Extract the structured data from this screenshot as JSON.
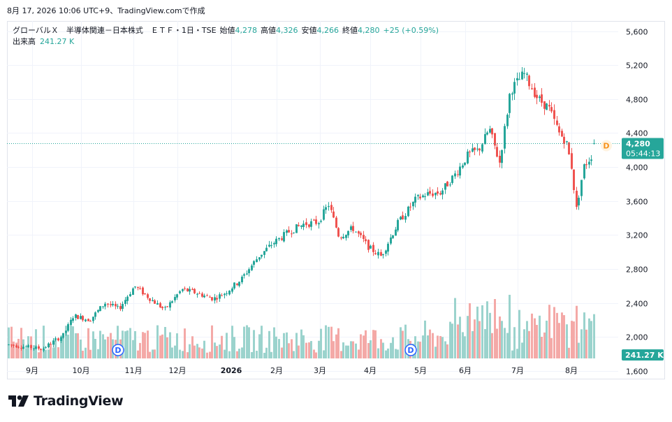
{
  "header": {
    "timestamp": "8月 17, 2026 10:06 UTC+9、TradingView.comで作成"
  },
  "legend": {
    "symbol": "グローバルＸ　半導体関連－日本株式　ＥＴＦ・1日・TSE",
    "open_label": "始値",
    "open_value": "4,278",
    "high_label": "高値",
    "high_value": "4,326",
    "low_label": "安値",
    "low_value": "4,266",
    "close_label": "終値",
    "close_value": "4,280",
    "change": "+25 (+0.59%)",
    "volume_label": "出来高",
    "volume_value": "241.27 K"
  },
  "price_axis": {
    "ticks": [
      "5,600",
      "5,200",
      "4,800",
      "4,400",
      "4,000",
      "3,600",
      "3,200",
      "2,800",
      "2,400",
      "2,000",
      "1,600"
    ],
    "last_price_label": "4,280",
    "countdown_label": "05:44:13",
    "volume_label": "241.27 K"
  },
  "time_axis": {
    "labels": [
      "9月",
      "10月",
      "11月",
      "12月",
      "2026",
      "2月",
      "3月",
      "4月",
      "5月",
      "6月",
      "7月",
      "8月"
    ]
  },
  "markers": {
    "dividend_letter": "D"
  },
  "brand": {
    "name": "TradingView"
  },
  "colors": {
    "up": "#26a69a",
    "down": "#ef5350",
    "up_volume": "#9bd3cd",
    "down_volume": "#f4a9a7",
    "marker_blue": "#2962ff",
    "marker_orange": "#f7931a"
  },
  "chart_data": {
    "type": "candlestick",
    "title": "グローバルＸ　半導体関連－日本株式　ＥＴＦ・1日・TSE",
    "y_range": [
      1500,
      5720
    ],
    "y_ticks": [
      5600,
      5200,
      4800,
      4400,
      4000,
      3600,
      3200,
      2800,
      2400,
      2000,
      1600
    ],
    "last_price": 4280,
    "last_ohlc": {
      "open": 4278,
      "high": 4326,
      "low": 4266,
      "close": 4280,
      "change": 25,
      "change_pct": 0.59
    },
    "last_volume": "241.27 K",
    "x_labels": [
      "9月",
      "10月",
      "11月",
      "12月",
      "2026",
      "2月",
      "3月",
      "4月",
      "5月",
      "6月",
      "7月",
      "8月"
    ],
    "dividend_markers": [
      "11月",
      "5月"
    ],
    "close_anchors_by_month": [
      {
        "period": "9月",
        "close": 1860
      },
      {
        "period": "10月",
        "close": 2230
      },
      {
        "period": "11月",
        "close": 2520
      },
      {
        "period": "12月",
        "close": 2450
      },
      {
        "period": "2026",
        "close": 2800
      },
      {
        "period": "2月",
        "close": 3280
      },
      {
        "period": "3月",
        "close": 3400
      },
      {
        "period": "4月",
        "close": 3000
      },
      {
        "period": "5月",
        "close": 3700
      },
      {
        "period": "6月",
        "close": 4150
      },
      {
        "period": "7月",
        "close": 5000
      },
      {
        "period": "8月",
        "close": 4100
      }
    ],
    "grid": true,
    "legend_position": "top-left"
  }
}
